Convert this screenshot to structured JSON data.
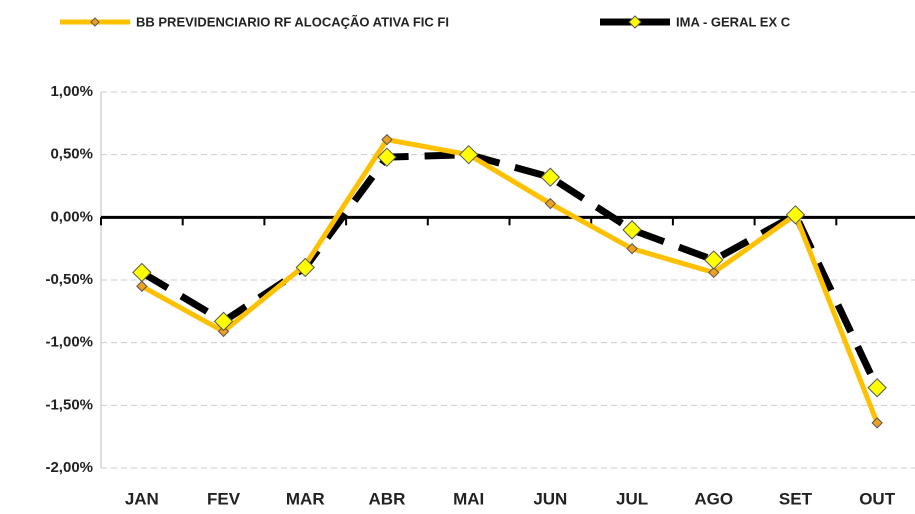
{
  "chart_data": {
    "type": "line",
    "categories": [
      "JAN",
      "FEV",
      "MAR",
      "ABR",
      "MAI",
      "JUN",
      "JUL",
      "AGO",
      "SET",
      "OUT"
    ],
    "series": [
      {
        "name": "BB PREVIDENCIARIO RF ALOCAÇÃO ATIVA FIC FI",
        "color": "#ffc000",
        "values": [
          -0.55,
          -0.91,
          -0.38,
          0.62,
          0.5,
          0.11,
          -0.25,
          -0.44,
          0.02,
          -1.64
        ]
      },
      {
        "name": "IMA - GERAL EX C",
        "color": "#000000",
        "values": [
          -0.44,
          -0.83,
          -0.4,
          0.48,
          0.5,
          0.32,
          -0.1,
          -0.34,
          0.02,
          -1.36
        ]
      }
    ],
    "ylim": [
      -2,
      1
    ],
    "yticks": [
      {
        "value": -2,
        "label": "-2,00%"
      },
      {
        "value": -1.5,
        "label": "-1,50%"
      },
      {
        "value": -1,
        "label": "-1,00%"
      },
      {
        "value": -0.5,
        "label": "-0,50%"
      },
      {
        "value": 0,
        "label": "0,00%"
      },
      {
        "value": 0.5,
        "label": "0,50%"
      },
      {
        "value": 1,
        "label": "1,00%"
      }
    ],
    "grid": true
  }
}
